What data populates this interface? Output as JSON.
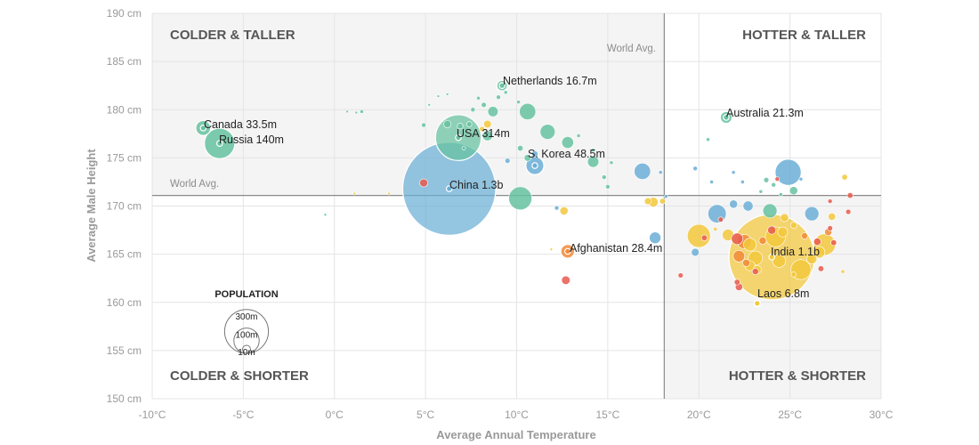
{
  "chart_data": {
    "type": "scatter",
    "xlabel": "Average Annual Temperature",
    "ylabel": "Average Male Height",
    "xlim": [
      -10,
      30
    ],
    "ylim": [
      150,
      190
    ],
    "x_ticks": [
      -10,
      -5,
      0,
      5,
      10,
      15,
      20,
      25,
      30
    ],
    "x_tick_labels": [
      "-10°C",
      "-5°C",
      "0°C",
      "5°C",
      "10°C",
      "15°C",
      "20°C",
      "25°C",
      "30°C"
    ],
    "y_ticks": [
      150,
      155,
      160,
      165,
      170,
      175,
      180,
      185,
      190
    ],
    "y_tick_labels": [
      "150 cm",
      "155 cm",
      "160 cm",
      "165 cm",
      "170 cm",
      "175 cm",
      "180 cm",
      "185 cm",
      "190 cm"
    ],
    "grid": true,
    "world_avg": {
      "x": 18.1,
      "y": 171.1,
      "x_label": "World Avg.",
      "y_label": "World Avg."
    },
    "quadrants": {
      "top_left": "COLDER & TALLER",
      "top_right": "HOTTER & TALLER",
      "bottom_left": "COLDER & SHORTER",
      "bottom_right": "HOTTER & SHORTER"
    },
    "colors": {
      "green": "#66c2a0",
      "blue": "#6baed6",
      "yellow": "#f2c83c",
      "orange": "#f08a3a",
      "red": "#e8594d"
    },
    "legend": {
      "title": "POPULATION",
      "sizes": [
        {
          "label": "300m",
          "value": 300
        },
        {
          "label": "100m",
          "value": 100
        },
        {
          "label": "10m",
          "value": 10
        }
      ]
    },
    "labeled_points": [
      {
        "name": "Canada 33.5m",
        "x": -7.2,
        "y": 178.1,
        "pop": 33.5,
        "color": "green"
      },
      {
        "name": "Russia 140m",
        "x": -6.3,
        "y": 176.5,
        "pop": 140,
        "color": "green"
      },
      {
        "name": "Netherlands 16.7m",
        "x": 9.2,
        "y": 182.5,
        "pop": 16.7,
        "color": "green"
      },
      {
        "name": "USA 314m",
        "x": 6.8,
        "y": 177.1,
        "pop": 314,
        "color": "green"
      },
      {
        "name": "S. Korea 48.5m",
        "x": 11.0,
        "y": 174.2,
        "pop": 48.5,
        "color": "blue"
      },
      {
        "name": "China 1.3b",
        "x": 6.3,
        "y": 171.8,
        "pop": 1300,
        "color": "blue"
      },
      {
        "name": "Australia 21.3m",
        "x": 21.5,
        "y": 179.2,
        "pop": 21.3,
        "color": "green"
      },
      {
        "name": "Afghanistan 28.4m",
        "x": 12.8,
        "y": 165.3,
        "pop": 28.4,
        "color": "orange"
      },
      {
        "name": "India 1.1b",
        "x": 24.0,
        "y": 164.7,
        "pop": 1100,
        "color": "yellow"
      },
      {
        "name": "Laos 6.8m",
        "x": 23.2,
        "y": 159.9,
        "pop": 6.8,
        "color": "yellow"
      }
    ],
    "other_points": [
      {
        "x": 4.9,
        "y": 178.4,
        "pop": 3,
        "color": "green"
      },
      {
        "x": 5.2,
        "y": 180.5,
        "pop": 1,
        "color": "green"
      },
      {
        "x": 5.7,
        "y": 181.4,
        "pop": 0.5,
        "color": "green"
      },
      {
        "x": 6.2,
        "y": 181.6,
        "pop": 0.5,
        "color": "green"
      },
      {
        "x": 0.7,
        "y": 179.8,
        "pop": 1,
        "color": "green"
      },
      {
        "x": 1.2,
        "y": 179.7,
        "pop": 1,
        "color": "green"
      },
      {
        "x": 1.5,
        "y": 179.8,
        "pop": 2,
        "color": "green"
      },
      {
        "x": 6.2,
        "y": 178.5,
        "pop": 8,
        "color": "green"
      },
      {
        "x": 6.9,
        "y": 178.3,
        "pop": 5,
        "color": "green"
      },
      {
        "x": 7.4,
        "y": 178.5,
        "pop": 4,
        "color": "green"
      },
      {
        "x": 7.6,
        "y": 180.0,
        "pop": 3,
        "color": "green"
      },
      {
        "x": 7.9,
        "y": 181.2,
        "pop": 2,
        "color": "green"
      },
      {
        "x": 8.2,
        "y": 180.5,
        "pop": 4,
        "color": "green"
      },
      {
        "x": 8.7,
        "y": 179.8,
        "pop": 16,
        "color": "green"
      },
      {
        "x": 9.0,
        "y": 181.3,
        "pop": 3,
        "color": "green"
      },
      {
        "x": 9.4,
        "y": 181.8,
        "pop": 2,
        "color": "green"
      },
      {
        "x": 10.1,
        "y": 180.8,
        "pop": 2,
        "color": "green"
      },
      {
        "x": 10.6,
        "y": 179.8,
        "pop": 40,
        "color": "green"
      },
      {
        "x": 8.4,
        "y": 178.5,
        "pop": 9,
        "color": "yellow"
      },
      {
        "x": 8.1,
        "y": 178.0,
        "pop": 4,
        "color": "yellow"
      },
      {
        "x": 8.4,
        "y": 177.3,
        "pop": 15,
        "color": "green"
      },
      {
        "x": 7.1,
        "y": 176.0,
        "pop": 2,
        "color": "green"
      },
      {
        "x": 11.7,
        "y": 177.7,
        "pop": 34,
        "color": "green"
      },
      {
        "x": 12.8,
        "y": 176.6,
        "pop": 21,
        "color": "green"
      },
      {
        "x": 13.4,
        "y": 177.3,
        "pop": 2,
        "color": "green"
      },
      {
        "x": 10.2,
        "y": 176.0,
        "pop": 5,
        "color": "green"
      },
      {
        "x": 10.6,
        "y": 175.0,
        "pop": 7,
        "color": "green"
      },
      {
        "x": 14.2,
        "y": 174.6,
        "pop": 19,
        "color": "green"
      },
      {
        "x": 14.2,
        "y": 175.8,
        "pop": 2,
        "color": "green"
      },
      {
        "x": 15.2,
        "y": 174.5,
        "pop": 2,
        "color": "green"
      },
      {
        "x": 9.5,
        "y": 174.7,
        "pop": 4,
        "color": "blue"
      },
      {
        "x": 11.0,
        "y": 175.4,
        "pop": 6,
        "color": "blue"
      },
      {
        "x": 10.2,
        "y": 170.8,
        "pop": 80,
        "color": "green"
      },
      {
        "x": 14.8,
        "y": 173.0,
        "pop": 3,
        "color": "green"
      },
      {
        "x": 15.0,
        "y": 172.0,
        "pop": 3,
        "color": "green"
      },
      {
        "x": 16.9,
        "y": 173.6,
        "pop": 40,
        "color": "blue"
      },
      {
        "x": 17.9,
        "y": 173.5,
        "pop": 2,
        "color": "blue"
      },
      {
        "x": 17.5,
        "y": 170.4,
        "pop": 14,
        "color": "yellow"
      },
      {
        "x": 17.2,
        "y": 170.5,
        "pop": 7,
        "color": "yellow"
      },
      {
        "x": 18.0,
        "y": 170.5,
        "pop": 5,
        "color": "yellow"
      },
      {
        "x": 12.6,
        "y": 169.5,
        "pop": 10,
        "color": "yellow"
      },
      {
        "x": 12.2,
        "y": 169.8,
        "pop": 3,
        "color": "blue"
      },
      {
        "x": 4.9,
        "y": 172.4,
        "pop": 10,
        "color": "red"
      },
      {
        "x": 1.1,
        "y": 171.3,
        "pop": 1,
        "color": "yellow"
      },
      {
        "x": 3.0,
        "y": 171.3,
        "pop": 1,
        "color": "yellow"
      },
      {
        "x": -0.5,
        "y": 169.1,
        "pop": 1,
        "color": "green"
      },
      {
        "x": 17.6,
        "y": 166.7,
        "pop": 20,
        "color": "blue"
      },
      {
        "x": 12.7,
        "y": 162.3,
        "pop": 11,
        "color": "red"
      },
      {
        "x": 11.9,
        "y": 165.5,
        "pop": 1,
        "color": "yellow"
      },
      {
        "x": 20.5,
        "y": 176.9,
        "pop": 2,
        "color": "green"
      },
      {
        "x": 19.8,
        "y": 173.9,
        "pop": 3,
        "color": "blue"
      },
      {
        "x": 20.7,
        "y": 172.5,
        "pop": 2,
        "color": "blue"
      },
      {
        "x": 21.9,
        "y": 173.5,
        "pop": 2,
        "color": "blue"
      },
      {
        "x": 22.4,
        "y": 172.5,
        "pop": 2,
        "color": "blue"
      },
      {
        "x": 24.9,
        "y": 173.5,
        "pop": 100,
        "color": "blue"
      },
      {
        "x": 23.7,
        "y": 172.7,
        "pop": 4,
        "color": "green"
      },
      {
        "x": 24.3,
        "y": 172.8,
        "pop": 3,
        "color": "red"
      },
      {
        "x": 24.1,
        "y": 172.2,
        "pop": 3,
        "color": "green"
      },
      {
        "x": 24.5,
        "y": 171.2,
        "pop": 2,
        "color": "green"
      },
      {
        "x": 25.2,
        "y": 171.6,
        "pop": 10,
        "color": "green"
      },
      {
        "x": 25.6,
        "y": 172.8,
        "pop": 2,
        "color": "blue"
      },
      {
        "x": 23.4,
        "y": 171.5,
        "pop": 2,
        "color": "green"
      },
      {
        "x": 26.2,
        "y": 169.2,
        "pop": 30,
        "color": "blue"
      },
      {
        "x": 28.0,
        "y": 173.0,
        "pop": 5,
        "color": "yellow"
      },
      {
        "x": 28.3,
        "y": 171.1,
        "pop": 5,
        "color": "red"
      },
      {
        "x": 27.2,
        "y": 170.5,
        "pop": 3,
        "color": "red"
      },
      {
        "x": 27.3,
        "y": 168.9,
        "pop": 8,
        "color": "yellow"
      },
      {
        "x": 28.2,
        "y": 169.4,
        "pop": 4,
        "color": "red"
      },
      {
        "x": 21.0,
        "y": 169.2,
        "pop": 50,
        "color": "blue"
      },
      {
        "x": 21.9,
        "y": 170.2,
        "pop": 10,
        "color": "blue"
      },
      {
        "x": 22.7,
        "y": 170.0,
        "pop": 15,
        "color": "blue"
      },
      {
        "x": 21.2,
        "y": 168.6,
        "pop": 4,
        "color": "red"
      },
      {
        "x": 20.9,
        "y": 167.6,
        "pop": 2,
        "color": "yellow"
      },
      {
        "x": 23.9,
        "y": 169.5,
        "pop": 30,
        "color": "green"
      },
      {
        "x": 24.7,
        "y": 168.8,
        "pop": 10,
        "color": "yellow"
      },
      {
        "x": 25.2,
        "y": 168.0,
        "pop": 6,
        "color": "yellow"
      },
      {
        "x": 20.0,
        "y": 166.9,
        "pop": 80,
        "color": "yellow"
      },
      {
        "x": 19.8,
        "y": 165.2,
        "pop": 9,
        "color": "blue"
      },
      {
        "x": 20.3,
        "y": 166.7,
        "pop": 5,
        "color": "red"
      },
      {
        "x": 21.6,
        "y": 167.0,
        "pop": 20,
        "color": "yellow"
      },
      {
        "x": 22.1,
        "y": 166.6,
        "pop": 20,
        "color": "red"
      },
      {
        "x": 22.5,
        "y": 166.3,
        "pop": 30,
        "color": "orange"
      },
      {
        "x": 22.8,
        "y": 166.0,
        "pop": 25,
        "color": "yellow"
      },
      {
        "x": 22.2,
        "y": 164.8,
        "pop": 20,
        "color": "orange"
      },
      {
        "x": 23.1,
        "y": 164.6,
        "pop": 30,
        "color": "yellow"
      },
      {
        "x": 22.8,
        "y": 163.8,
        "pop": 15,
        "color": "yellow"
      },
      {
        "x": 22.6,
        "y": 164.1,
        "pop": 8,
        "color": "orange"
      },
      {
        "x": 23.2,
        "y": 163.4,
        "pop": 10,
        "color": "yellow"
      },
      {
        "x": 24.4,
        "y": 164.3,
        "pop": 25,
        "color": "yellow"
      },
      {
        "x": 25.6,
        "y": 163.4,
        "pop": 60,
        "color": "yellow"
      },
      {
        "x": 26.2,
        "y": 164.5,
        "pop": 15,
        "color": "yellow"
      },
      {
        "x": 26.9,
        "y": 166.0,
        "pop": 70,
        "color": "yellow"
      },
      {
        "x": 26.6,
        "y": 165.2,
        "pop": 20,
        "color": "yellow"
      },
      {
        "x": 26.5,
        "y": 166.3,
        "pop": 8,
        "color": "red"
      },
      {
        "x": 27.1,
        "y": 167.3,
        "pop": 8,
        "color": "orange"
      },
      {
        "x": 27.4,
        "y": 166.2,
        "pop": 5,
        "color": "red"
      },
      {
        "x": 27.2,
        "y": 167.7,
        "pop": 4,
        "color": "red"
      },
      {
        "x": 25.8,
        "y": 166.9,
        "pop": 6,
        "color": "orange"
      },
      {
        "x": 26.7,
        "y": 163.5,
        "pop": 5,
        "color": "red"
      },
      {
        "x": 27.9,
        "y": 163.2,
        "pop": 2,
        "color": "yellow"
      },
      {
        "x": 25.2,
        "y": 162.9,
        "pop": 4,
        "color": "yellow"
      },
      {
        "x": 22.1,
        "y": 162.1,
        "pop": 5,
        "color": "red"
      },
      {
        "x": 22.2,
        "y": 161.6,
        "pop": 8,
        "color": "red"
      },
      {
        "x": 23.1,
        "y": 163.2,
        "pop": 6,
        "color": "red"
      },
      {
        "x": 24.0,
        "y": 167.5,
        "pop": 10,
        "color": "red"
      },
      {
        "x": 24.2,
        "y": 166.8,
        "pop": 60,
        "color": "yellow"
      },
      {
        "x": 23.5,
        "y": 166.4,
        "pop": 8,
        "color": "orange"
      },
      {
        "x": 24.6,
        "y": 167.3,
        "pop": 15,
        "color": "yellow"
      },
      {
        "x": 19.0,
        "y": 162.8,
        "pop": 4,
        "color": "red"
      },
      {
        "x": 18.2,
        "y": 171.0,
        "pop": 2,
        "color": "blue"
      }
    ]
  }
}
